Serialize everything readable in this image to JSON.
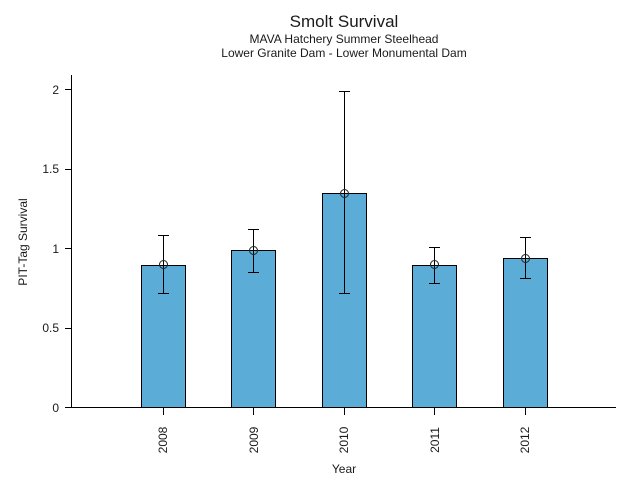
{
  "chart_data": {
    "type": "bar",
    "title": "Smolt Survival",
    "subtitles": [
      "MAVA Hatchery Summer Steelhead",
      "Lower Granite Dam - Lower Monumental Dam"
    ],
    "xlabel": "Year",
    "ylabel": "PIT-Tag Survival",
    "categories": [
      "2008",
      "2009",
      "2010",
      "2011",
      "2012"
    ],
    "values": [
      0.9,
      0.99,
      1.35,
      0.9,
      0.94
    ],
    "error_low": [
      0.72,
      0.85,
      0.72,
      0.78,
      0.81
    ],
    "error_high": [
      1.08,
      1.12,
      1.99,
      1.01,
      1.07
    ],
    "yticks": [
      0,
      0.5,
      1,
      1.5,
      2
    ],
    "ytick_labels": [
      "0",
      "0.5",
      "1",
      "1.5",
      "2"
    ],
    "ylim": [
      0,
      2.09
    ],
    "grid": false,
    "legend": null,
    "marker": "open-circle",
    "colors": {
      "bar_fill": "#5BACD6",
      "bar_edge": "#000000",
      "error": "#000000",
      "marker_edge": "#222222",
      "text": "#1a1a1a"
    }
  }
}
